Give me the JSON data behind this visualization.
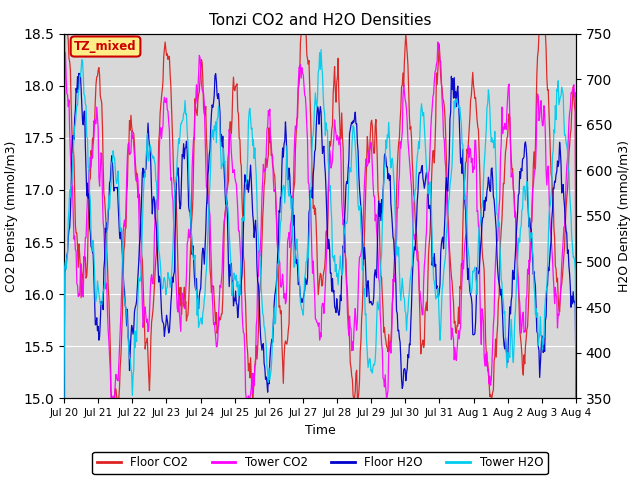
{
  "title": "Tonzi CO2 and H2O Densities",
  "xlabel": "Time",
  "ylabel_left": "CO2 Density (mmol/m3)",
  "ylabel_right": "H2O Density (mmol/m3)",
  "ylim_left": [
    15.0,
    18.5
  ],
  "ylim_right": [
    350,
    750
  ],
  "yticks_left": [
    15.0,
    15.5,
    16.0,
    16.5,
    17.0,
    17.5,
    18.0,
    18.5
  ],
  "yticks_right": [
    350,
    400,
    450,
    500,
    550,
    600,
    650,
    700,
    750
  ],
  "xtick_labels": [
    "Jul 20",
    "Jul 21",
    "Jul 22",
    "Jul 23",
    "Jul 24",
    "Jul 25",
    "Jul 26",
    "Jul 27",
    "Jul 28",
    "Jul 29",
    "Jul 30",
    "Jul 31",
    "Aug 1",
    "Aug 2",
    "Aug 3",
    "Aug 4"
  ],
  "annotation_text": "TZ_mixed",
  "annotation_color": "#cc0000",
  "annotation_bg": "#ffee88",
  "colors": {
    "floor_co2": "#dd2222",
    "tower_co2": "#ff00ff",
    "floor_h2o": "#0000cc",
    "tower_h2o": "#00ccee"
  },
  "legend_labels": [
    "Floor CO2",
    "Tower CO2",
    "Floor H2O",
    "Tower H2O"
  ],
  "background_gray": "#d8d8d8",
  "n_days": 15,
  "points_per_day": 48
}
